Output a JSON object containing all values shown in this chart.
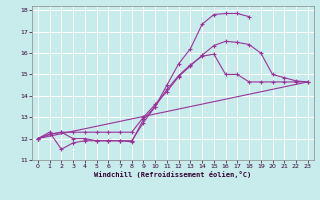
{
  "xlabel": "Windchill (Refroidissement éolien,°C)",
  "bg_color": "#c8ecec",
  "line_color": "#993399",
  "grid_color": "#ffffff",
  "xlim": [
    -0.5,
    23.5
  ],
  "ylim": [
    11,
    18.2
  ],
  "xticks": [
    0,
    1,
    2,
    3,
    4,
    5,
    6,
    7,
    8,
    9,
    10,
    11,
    12,
    13,
    14,
    15,
    16,
    17,
    18,
    19,
    20,
    21,
    22,
    23
  ],
  "yticks": [
    11,
    12,
    13,
    14,
    15,
    16,
    17,
    18
  ],
  "line1_x": [
    0,
    1,
    2,
    3,
    4,
    5,
    6,
    7,
    8,
    9,
    10,
    11,
    12,
    13,
    14,
    15,
    16,
    17,
    18,
    19,
    20,
    21,
    22,
    23
  ],
  "line1_y": [
    12.0,
    12.3,
    11.5,
    11.8,
    11.9,
    11.9,
    11.9,
    11.9,
    11.85,
    12.9,
    13.5,
    14.3,
    14.95,
    15.45,
    15.85,
    15.95,
    15.0,
    15.0,
    14.65,
    14.65,
    14.65,
    14.65,
    14.65,
    14.65
  ],
  "line2_x": [
    0,
    1,
    2,
    3,
    4,
    5,
    6,
    7,
    8,
    9,
    10,
    11,
    12,
    13,
    14,
    15,
    16,
    17,
    18,
    19,
    20,
    21,
    22,
    23
  ],
  "line2_y": [
    12.0,
    12.2,
    12.3,
    12.3,
    12.3,
    12.3,
    12.3,
    12.3,
    12.3,
    13.0,
    13.6,
    14.2,
    14.9,
    15.4,
    15.9,
    16.35,
    16.55,
    16.5,
    16.4,
    16.0,
    15.0,
    14.85,
    14.7,
    14.65
  ],
  "line3_x": [
    0,
    1,
    2,
    3,
    4,
    5,
    6,
    7,
    8,
    9,
    10,
    11,
    12,
    13,
    14,
    15,
    16,
    17,
    18
  ],
  "line3_y": [
    12.0,
    12.2,
    12.3,
    12.0,
    12.0,
    11.9,
    11.9,
    11.9,
    11.9,
    12.75,
    13.5,
    14.5,
    15.5,
    16.2,
    17.35,
    17.8,
    17.85,
    17.85,
    17.7
  ],
  "line4_x": [
    0,
    23
  ],
  "line4_y": [
    12.0,
    14.65
  ]
}
